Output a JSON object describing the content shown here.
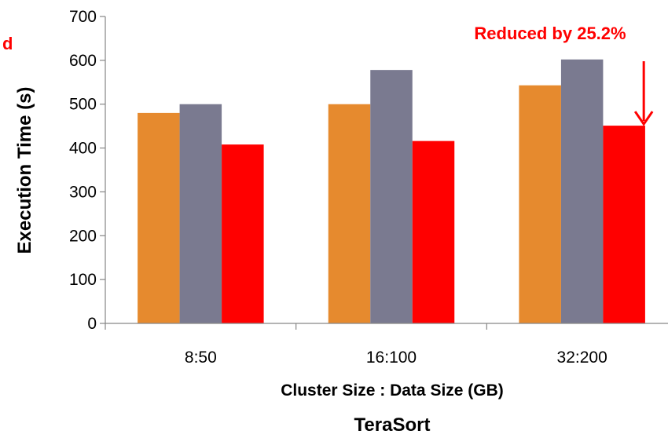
{
  "chart_data": {
    "type": "bar",
    "title": "TeraSort",
    "xlabel": "Cluster Size : Data Size (GB)",
    "ylabel": "Execution Time (s)",
    "ylim": [
      0,
      700
    ],
    "yticks": [
      0,
      100,
      200,
      300,
      400,
      500,
      600,
      700
    ],
    "categories": [
      "8:50",
      "16:100",
      "32:200"
    ],
    "series": [
      {
        "values": [
          480,
          500,
          543
        ],
        "color": "#E68A2E"
      },
      {
        "values": [
          500,
          578,
          602
        ],
        "color": "#7A7A90"
      },
      {
        "values": [
          408,
          416,
          451
        ],
        "color": "#FF0000"
      }
    ],
    "grid": false,
    "annotations": [
      {
        "text": "Reduced by 25.2%",
        "color": "#FF0000",
        "category": "32:200",
        "series": 2
      },
      {
        "text": "d",
        "color": "#FF0000"
      }
    ]
  }
}
